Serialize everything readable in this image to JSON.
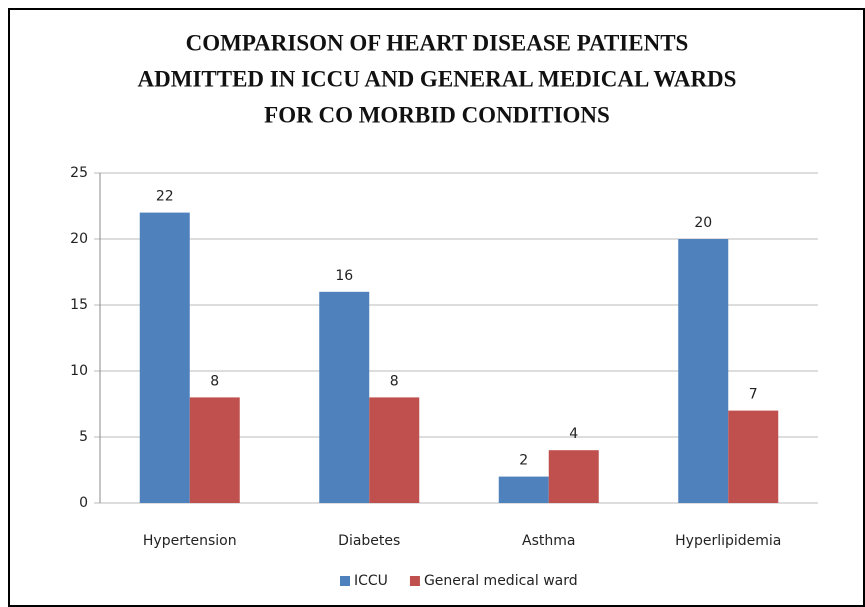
{
  "chart_data": {
    "type": "bar",
    "title": [
      "COMPARISON OF HEART DISEASE PATIENTS",
      "ADMITTED IN ICCU AND GENERAL MEDICAL WARDS",
      "FOR CO MORBID CONDITIONS"
    ],
    "categories": [
      "Hypertension",
      "Diabetes",
      "Asthma",
      "Hyperlipidemia"
    ],
    "series": [
      {
        "name": "ICCU",
        "color": "#4f81bd",
        "values": [
          22,
          16,
          2,
          20
        ]
      },
      {
        "name": "General medical ward",
        "color": "#c0504d",
        "values": [
          8,
          8,
          4,
          7
        ]
      }
    ],
    "ylim": [
      0,
      25
    ],
    "yticks": [
      0,
      5,
      10,
      15,
      20,
      25
    ],
    "grid": true,
    "legend": "bottom"
  }
}
